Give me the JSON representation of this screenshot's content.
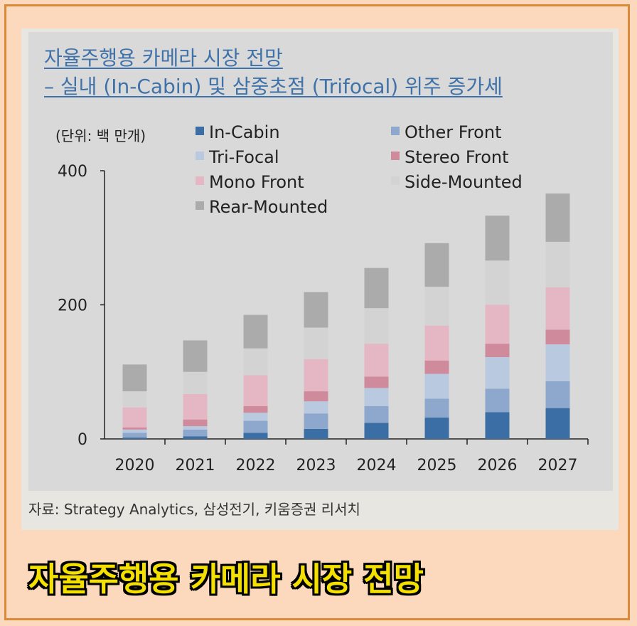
{
  "caption": "자율주행용 카메라 시장 전망",
  "source": "자료: Strategy Analytics, 삼성전기, 키움증권 리서치",
  "chart_data": {
    "type": "bar",
    "stacked": true,
    "title": "자율주행용 카메라 시장 전망",
    "subtitle": "– 실내 (In-Cabin) 및 삼중초점 (Trifocal) 위주 증가세",
    "unit_label": "(단위: 백 만개)",
    "categories": [
      "2020",
      "2021",
      "2022",
      "2023",
      "2024",
      "2025",
      "2026",
      "2027"
    ],
    "ylim": [
      0,
      400
    ],
    "yticks": [
      0,
      200,
      400
    ],
    "legend_position": "top",
    "series": [
      {
        "name": "In-Cabin",
        "color": "#3a6ea5",
        "values": [
          2,
          4,
          9,
          15,
          24,
          32,
          40,
          46
        ]
      },
      {
        "name": "Other Front",
        "color": "#8ea8cd",
        "values": [
          7,
          10,
          18,
          23,
          25,
          28,
          35,
          40
        ]
      },
      {
        "name": "Tri-Focal",
        "color": "#b8c9e0",
        "values": [
          5,
          5,
          12,
          18,
          27,
          37,
          47,
          55
        ]
      },
      {
        "name": "Stereo Front",
        "color": "#cf8a9c",
        "values": [
          3,
          10,
          10,
          15,
          17,
          20,
          20,
          22
        ]
      },
      {
        "name": "Mono Front",
        "color": "#e5b6c3",
        "values": [
          30,
          38,
          46,
          48,
          49,
          52,
          58,
          63
        ]
      },
      {
        "name": "Side-Mounted",
        "color": "#d3d3d3",
        "values": [
          24,
          33,
          40,
          47,
          53,
          58,
          66,
          68
        ]
      },
      {
        "name": "Rear-Mounted",
        "color": "#ababab",
        "values": [
          40,
          47,
          50,
          53,
          60,
          65,
          67,
          72
        ]
      }
    ]
  }
}
